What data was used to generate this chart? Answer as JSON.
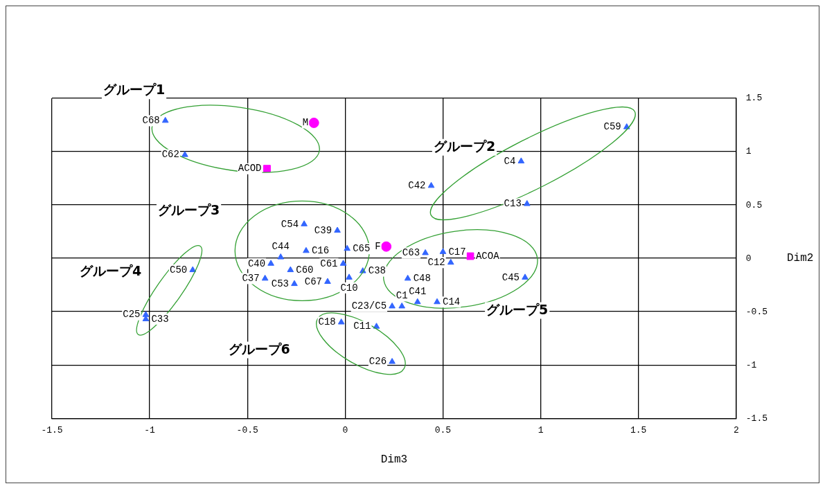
{
  "chart_data": {
    "type": "scatter",
    "xlabel": "Dim3",
    "ylabel": "Dim2",
    "xlim": [
      -1.5,
      2
    ],
    "xticks": [
      -1.5,
      -1,
      -0.5,
      0,
      0.5,
      1,
      1.5,
      2
    ],
    "ylim": [
      -1.5,
      1.5
    ],
    "yticks": [
      -1.5,
      -1,
      -0.5,
      0,
      0.5,
      1,
      1.5
    ],
    "grid": true,
    "legend": false,
    "series": [
      {
        "color": "#3366ff",
        "marker": "triangle",
        "x": [
          -0.92,
          -0.82,
          1.44,
          0.9,
          0.44,
          0.93,
          -0.21,
          -0.04,
          -0.2,
          0.01,
          -0.33,
          -0.38,
          -0.28,
          -0.41,
          -0.26,
          -0.01,
          -0.09,
          0.09,
          0.02,
          0.41,
          0.5,
          0.54,
          0.32,
          0.92,
          0.24,
          0.29,
          0.37,
          0.47,
          -0.78,
          -1.02,
          -1.02,
          -0.02,
          0.16,
          0.24
        ],
        "values": [
          1.29,
          0.97,
          1.23,
          0.91,
          0.68,
          0.51,
          0.32,
          0.26,
          0.07,
          0.09,
          0.01,
          -0.05,
          -0.11,
          -0.19,
          -0.24,
          -0.05,
          -0.22,
          -0.12,
          -0.18,
          0.05,
          0.06,
          -0.04,
          -0.19,
          -0.18,
          -0.45,
          -0.45,
          -0.41,
          -0.41,
          -0.11,
          -0.53,
          -0.57,
          -0.6,
          -0.64,
          -0.97
        ]
      },
      {
        "color": "#ff00ff",
        "marker": "circle",
        "x": [
          -0.16,
          0.21
        ],
        "values": [
          1.27,
          0.11
        ]
      },
      {
        "color": "#ff00ff",
        "marker": "square",
        "x": [
          -0.4,
          0.64
        ],
        "values": [
          0.84,
          0.02
        ]
      }
    ],
    "annotations": [
      {
        "text": "C68",
        "x": -0.92,
        "y": 1.29
      },
      {
        "text": "C62",
        "x": -0.82,
        "y": 0.97
      },
      {
        "text": "C59",
        "x": 1.44,
        "y": 1.23
      },
      {
        "text": "C4",
        "x": 0.9,
        "y": 0.91
      },
      {
        "text": "C42",
        "x": 0.44,
        "y": 0.68
      },
      {
        "text": "C13",
        "x": 0.93,
        "y": 0.51
      },
      {
        "text": "C54",
        "x": -0.21,
        "y": 0.32
      },
      {
        "text": "C39",
        "x": -0.04,
        "y": 0.26
      },
      {
        "text": "C16",
        "x": -0.2,
        "y": 0.07
      },
      {
        "text": "C65",
        "x": 0.01,
        "y": 0.09
      },
      {
        "text": "C44",
        "x": -0.33,
        "y": 0.01
      },
      {
        "text": "C40",
        "x": -0.38,
        "y": -0.05
      },
      {
        "text": "C60",
        "x": -0.28,
        "y": -0.11
      },
      {
        "text": "C37",
        "x": -0.41,
        "y": -0.19
      },
      {
        "text": "C53",
        "x": -0.26,
        "y": -0.24
      },
      {
        "text": "C61",
        "x": -0.01,
        "y": -0.05
      },
      {
        "text": "C67",
        "x": -0.09,
        "y": -0.22
      },
      {
        "text": "C38",
        "x": 0.09,
        "y": -0.12
      },
      {
        "text": "C10",
        "x": 0.02,
        "y": -0.18
      },
      {
        "text": "C63",
        "x": 0.41,
        "y": 0.05
      },
      {
        "text": "C17",
        "x": 0.5,
        "y": 0.06
      },
      {
        "text": "C12",
        "x": 0.54,
        "y": -0.04
      },
      {
        "text": "C48",
        "x": 0.32,
        "y": -0.19
      },
      {
        "text": "C45",
        "x": 0.92,
        "y": -0.18
      },
      {
        "text": "C23/C5",
        "x": 0.24,
        "y": -0.45
      },
      {
        "text": "C1",
        "x": 0.29,
        "y": -0.45
      },
      {
        "text": "C41",
        "x": 0.37,
        "y": -0.41
      },
      {
        "text": "C14",
        "x": 0.47,
        "y": -0.41
      },
      {
        "text": "C50",
        "x": -0.78,
        "y": -0.11
      },
      {
        "text": "C25",
        "x": -1.02,
        "y": -0.53
      },
      {
        "text": "C33",
        "x": -1.02,
        "y": -0.57
      },
      {
        "text": "C18",
        "x": -0.02,
        "y": -0.6
      },
      {
        "text": "C11",
        "x": 0.16,
        "y": -0.64
      },
      {
        "text": "C26",
        "x": 0.24,
        "y": -0.97
      },
      {
        "text": "M",
        "x": -0.16,
        "y": 1.27
      },
      {
        "text": "F",
        "x": 0.21,
        "y": 0.11
      },
      {
        "text": "ACOD",
        "x": -0.4,
        "y": 0.84
      },
      {
        "text": "ACOA",
        "x": 0.64,
        "y": 0.02
      },
      "グループ1",
      "グループ2",
      "グループ3",
      "グループ4",
      "グループ5",
      "グループ6"
    ]
  }
}
